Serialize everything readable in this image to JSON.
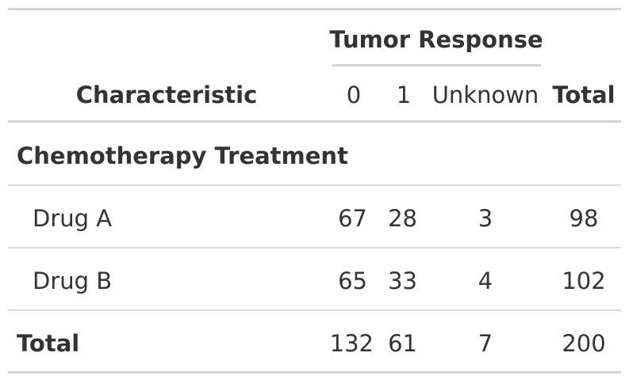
{
  "table": {
    "spanner_label": "Tumor Response",
    "header": {
      "characteristic": "Characteristic",
      "col_0": "0",
      "col_1": "1",
      "col_unknown": "Unknown",
      "col_total": "Total"
    },
    "group_label": "Chemotherapy Treatment",
    "rows": [
      {
        "label": "Drug A",
        "v0": "67",
        "v1": "28",
        "unknown": "3",
        "total": "98"
      },
      {
        "label": "Drug B",
        "v0": "65",
        "v1": "33",
        "unknown": "4",
        "total": "102"
      }
    ],
    "total_row": {
      "label": "Total",
      "v0": "132",
      "v1": "61",
      "unknown": "7",
      "total": "200"
    }
  }
}
